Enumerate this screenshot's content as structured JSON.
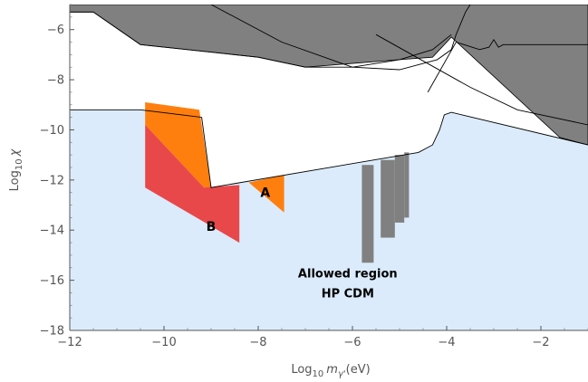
{
  "chart_data": {
    "type": "area",
    "xlabel": "Log₁₀ m_γ′(eV)",
    "ylabel": "Log₁₀ χ",
    "xlabel_parts": {
      "prefix": "Log",
      "sub": "10",
      "var": "m",
      "varsub": "γ'",
      "suffix": "(eV)"
    },
    "ylabel_parts": {
      "prefix": "Log",
      "sub": "10",
      "var": "χ"
    },
    "xlim": [
      -12,
      -1
    ],
    "ylim": [
      -18,
      -5
    ],
    "xticks": [
      -12,
      -10,
      -8,
      -6,
      -4,
      -2
    ],
    "yticks": [
      -18,
      -16,
      -14,
      -12,
      -10,
      -8,
      -6
    ],
    "x_tick_labels": [
      "−12",
      "−10",
      "−8",
      "−6",
      "−4",
      "−2"
    ],
    "y_tick_labels": [
      "−18",
      "−16",
      "−14",
      "−12",
      "−10",
      "−8",
      "−6"
    ],
    "grid": false,
    "colors": {
      "allowed": "#dbebfb",
      "excluded_gray": "#808080",
      "region_A": "#ff7f0e",
      "region_B": "#e8484a",
      "upper_orange": "#ff7f0e",
      "line": "#000000"
    },
    "regions": [
      {
        "id": "allowed",
        "points": [
          [
            -12,
            -18
          ],
          [
            -1,
            -18
          ],
          [
            -1,
            -10.6
          ],
          [
            -3.9,
            -9.3
          ],
          [
            -4.05,
            -9.4
          ],
          [
            -4.15,
            -10
          ],
          [
            -4.3,
            -10.6
          ],
          [
            -4.6,
            -10.9
          ],
          [
            -9,
            -12.3
          ],
          [
            -9.2,
            -9.5
          ],
          [
            -10.5,
            -9.2
          ],
          [
            -12,
            -9.2
          ]
        ]
      },
      {
        "id": "upper_orange",
        "points": [
          [
            -10.4,
            -8.9
          ],
          [
            -9.25,
            -9.2
          ],
          [
            -9.0,
            -12.3
          ],
          [
            -9.15,
            -12.3
          ],
          [
            -10.4,
            -9.8
          ]
        ]
      },
      {
        "id": "region_B",
        "points": [
          [
            -10.4,
            -9.8
          ],
          [
            -9.15,
            -12.3
          ],
          [
            -8.4,
            -12.2
          ],
          [
            -8.4,
            -14.5
          ],
          [
            -10.4,
            -12.3
          ]
        ]
      },
      {
        "id": "region_A",
        "points": [
          [
            -8.2,
            -12.1
          ],
          [
            -7.45,
            -11.8
          ],
          [
            -7.45,
            -13.3
          ]
        ]
      },
      {
        "id": "excluded_top",
        "points": [
          [
            -12,
            -5
          ],
          [
            -1,
            -5
          ],
          [
            -1,
            -10.6
          ],
          [
            -1.6,
            -10.3
          ],
          [
            -3.9,
            -6.3
          ],
          [
            -4.3,
            -7.1
          ],
          [
            -5,
            -7.2
          ],
          [
            -7,
            -7.5
          ],
          [
            -8,
            -7.1
          ],
          [
            -9,
            -6.9
          ],
          [
            -10.5,
            -6.6
          ],
          [
            -11.5,
            -5.3
          ],
          [
            -12,
            -5.3
          ]
        ]
      }
    ],
    "bars": [
      {
        "x0": -5.8,
        "x1": -5.55,
        "y_top": -11.4,
        "y_bottom": -15.3
      },
      {
        "x0": -5.4,
        "x1": -5.1,
        "y_top": -11.2,
        "y_bottom": -14.3
      },
      {
        "x0": -5.1,
        "x1": -4.9,
        "y_top": -11.0,
        "y_bottom": -13.7
      },
      {
        "x0": -4.9,
        "x1": -4.8,
        "y_top": -10.9,
        "y_bottom": -13.5
      }
    ],
    "lines": [
      [
        [
          -12,
          -5.3
        ],
        [
          -11.5,
          -5.3
        ],
        [
          -10.5,
          -6.6
        ],
        [
          -9,
          -6.9
        ],
        [
          -8,
          -7.1
        ],
        [
          -7,
          -7.5
        ],
        [
          -6,
          -7.5
        ],
        [
          -5,
          -7.2
        ],
        [
          -4.3,
          -6.8
        ],
        [
          -3.9,
          -6.2
        ]
      ],
      [
        [
          -9,
          -5
        ],
        [
          -7.5,
          -6.5
        ],
        [
          -6,
          -7.5
        ],
        [
          -5,
          -7.6
        ],
        [
          -4.2,
          -7.2
        ],
        [
          -3.9,
          -6.8
        ],
        [
          -3.8,
          -6.2
        ],
        [
          -3.6,
          -5.3
        ],
        [
          -3.5,
          -5
        ]
      ],
      [
        [
          -4.4,
          -8.5
        ],
        [
          -3.8,
          -6.5
        ],
        [
          -3.3,
          -6.8
        ],
        [
          -3.1,
          -6.7
        ],
        [
          -3.0,
          -6.4
        ],
        [
          -2.9,
          -6.7
        ],
        [
          -2.8,
          -6.6
        ],
        [
          -2.6,
          -6.6
        ],
        [
          -1,
          -6.6
        ]
      ],
      [
        [
          -5.5,
          -6.2
        ],
        [
          -3.5,
          -8.3
        ],
        [
          -2.5,
          -9.2
        ],
        [
          -1,
          -9.8
        ]
      ],
      [
        [
          -12,
          -9.2
        ],
        [
          -10.5,
          -9.2
        ],
        [
          -9.2,
          -9.5
        ],
        [
          -9,
          -12.3
        ],
        [
          -4.6,
          -10.9
        ],
        [
          -4.3,
          -10.6
        ],
        [
          -4.15,
          -10
        ],
        [
          -4.05,
          -9.4
        ],
        [
          -3.9,
          -9.3
        ],
        [
          -1,
          -10.6
        ]
      ]
    ],
    "annotations": [
      {
        "text": "A",
        "x": -7.85,
        "y": -12.5
      },
      {
        "text": "B",
        "x": -9.0,
        "y": -13.85
      },
      {
        "text": "Allowed region",
        "x": -6.1,
        "y": -15.7
      },
      {
        "text": "HP CDM",
        "x": -6.1,
        "y": -16.5
      }
    ]
  }
}
